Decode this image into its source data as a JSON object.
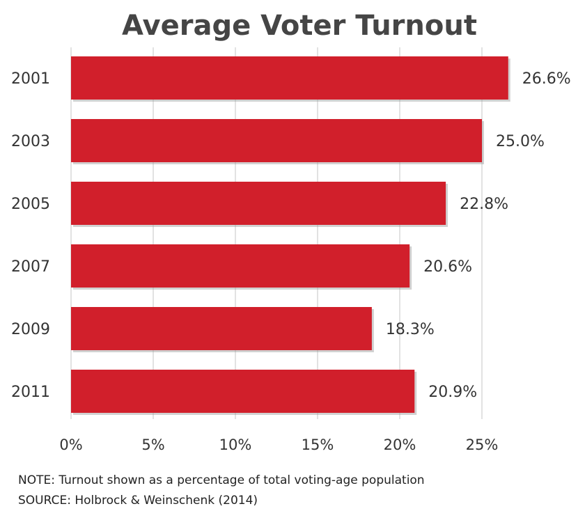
{
  "chart_data": {
    "type": "bar",
    "orientation": "horizontal",
    "title": "Average Voter Turnout",
    "categories": [
      "2001",
      "2003",
      "2005",
      "2007",
      "2009",
      "2011"
    ],
    "values": [
      26.6,
      25.0,
      22.8,
      20.6,
      18.3,
      20.9
    ],
    "data_labels": [
      "26.6%",
      "25.0%",
      "22.8%",
      "20.6%",
      "18.3%",
      "20.9%"
    ],
    "xlim": [
      0,
      25
    ],
    "xticks": [
      0,
      5,
      10,
      15,
      20,
      25
    ],
    "xtick_labels": [
      "0%",
      "5%",
      "10%",
      "15%",
      "20%",
      "25%"
    ],
    "grid": "vertical",
    "legend": "none",
    "bar_color": "#d11f2b",
    "grid_color": "#d9d9d9"
  },
  "notes": {
    "note": "NOTE: Turnout shown as a percentage of total voting-age population",
    "source": "SOURCE: Holbrock & Weinschenk (2014)"
  }
}
